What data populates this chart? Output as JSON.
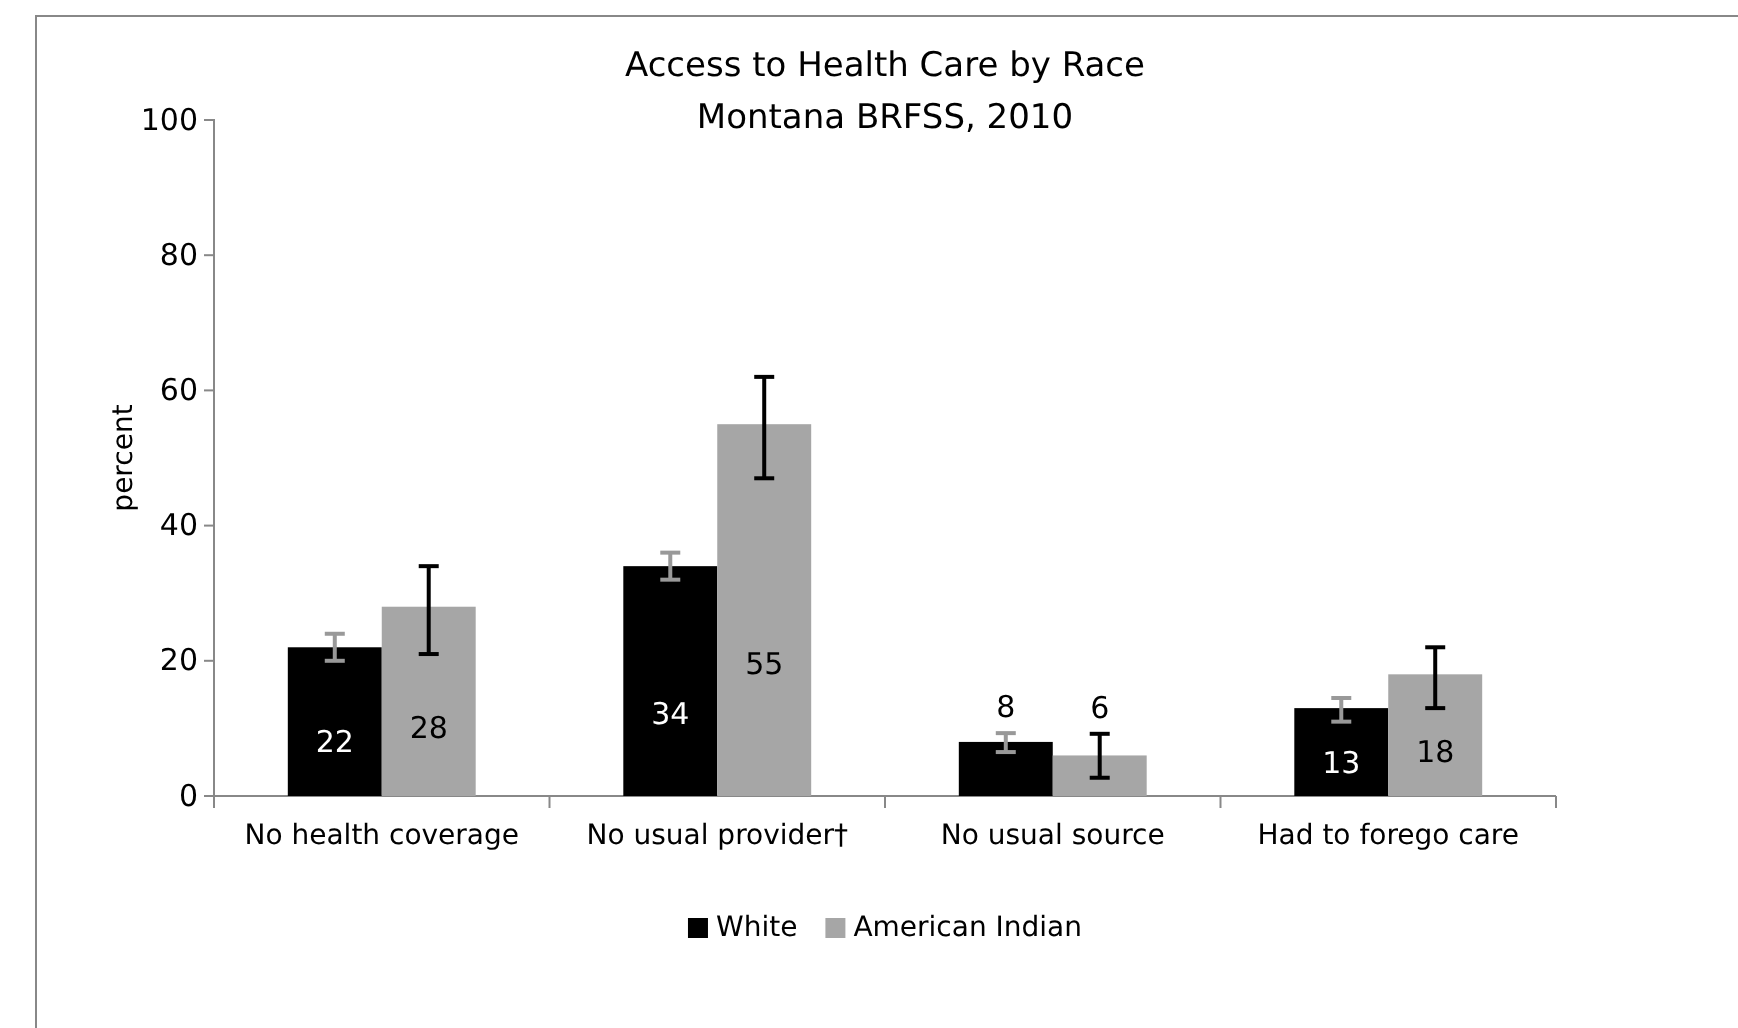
{
  "chart_data": {
    "type": "bar",
    "title": "Access to Health Care by Race",
    "subtitle": "Montana BRFSS, 2010",
    "ylabel": "percent",
    "categories": [
      "No health coverage",
      "No usual provider†",
      "No usual source",
      "Had to forego care"
    ],
    "series": [
      {
        "name": "White",
        "color": "#000000",
        "values": [
          22,
          34,
          8,
          13
        ],
        "errors": [
          [
            20,
            24
          ],
          [
            32,
            36
          ],
          [
            6.5,
            9.3
          ],
          [
            11,
            14.5
          ]
        ]
      },
      {
        "name": "American Indian",
        "color": "#a6a6a6",
        "values": [
          28,
          55,
          6,
          18
        ],
        "errors": [
          [
            21,
            34
          ],
          [
            47,
            62
          ],
          [
            2.7,
            9.2
          ],
          [
            13,
            22
          ]
        ]
      }
    ],
    "ylim": [
      0,
      100
    ],
    "yticks": [
      0,
      20,
      40,
      60,
      80,
      100
    ],
    "grid": false,
    "legend": "bottom",
    "data_labels": true
  }
}
